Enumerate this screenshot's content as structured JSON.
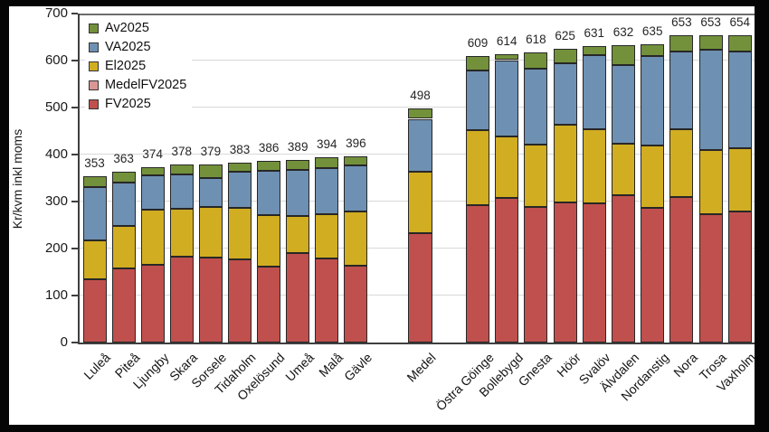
{
  "chart_data": {
    "type": "bar",
    "stacked": true,
    "title": "",
    "xlabel": "",
    "ylabel": "Kr/kvm inkl moms",
    "ylim": [
      0,
      700
    ],
    "ytick_step": 100,
    "grid": "horizontal",
    "legend_position": "upper-left-inside",
    "series_stack_order_bottom_to_top": [
      "FV2025",
      "El2025",
      "VA2025",
      "Av2025"
    ],
    "legend": [
      {
        "label": "Av2025",
        "color": "#73913b"
      },
      {
        "label": "VA2025",
        "color": "#6e90b2"
      },
      {
        "label": "El2025",
        "color": "#d1ad21"
      },
      {
        "label": "MedelFV2025",
        "color": "#d99694"
      },
      {
        "label": "FV2025",
        "color": "#c0504d"
      }
    ],
    "bars": [
      {
        "category": "Luleå",
        "group": "left",
        "total": 353,
        "FV2025": 134,
        "El2025": 84,
        "VA2025": 113,
        "Av2025": 22
      },
      {
        "category": "Piteå",
        "group": "left",
        "total": 363,
        "FV2025": 157,
        "El2025": 92,
        "VA2025": 92,
        "Av2025": 22
      },
      {
        "category": "Ljungby",
        "group": "left",
        "total": 374,
        "FV2025": 165,
        "El2025": 117,
        "VA2025": 73,
        "Av2025": 19
      },
      {
        "category": "Skara",
        "group": "left",
        "total": 378,
        "FV2025": 182,
        "El2025": 103,
        "VA2025": 73,
        "Av2025": 20
      },
      {
        "category": "Sorsele",
        "group": "left",
        "total": 379,
        "FV2025": 181,
        "El2025": 108,
        "VA2025": 61,
        "Av2025": 29
      },
      {
        "category": "Tidaholm",
        "group": "left",
        "total": 383,
        "FV2025": 177,
        "El2025": 110,
        "VA2025": 76,
        "Av2025": 20
      },
      {
        "category": "Oxelösund",
        "group": "left",
        "total": 386,
        "FV2025": 161,
        "El2025": 111,
        "VA2025": 93,
        "Av2025": 21
      },
      {
        "category": "Umeå",
        "group": "left",
        "total": 389,
        "FV2025": 190,
        "El2025": 80,
        "VA2025": 98,
        "Av2025": 21
      },
      {
        "category": "Malå",
        "group": "left",
        "total": 394,
        "FV2025": 179,
        "El2025": 94,
        "VA2025": 98,
        "Av2025": 23
      },
      {
        "category": "Gävle",
        "group": "left",
        "total": 396,
        "FV2025": 163,
        "El2025": 115,
        "VA2025": 99,
        "Av2025": 19
      },
      {
        "category": "Medel",
        "group": "medel",
        "total": 498,
        "FV2025": 233,
        "El2025": 131,
        "VA2025": 112,
        "Av2025": 22
      },
      {
        "category": "Östra Göinge",
        "group": "right",
        "total": 609,
        "FV2025": 293,
        "El2025": 158,
        "VA2025": 128,
        "Av2025": 30
      },
      {
        "category": "Bollebygd",
        "group": "right",
        "total": 614,
        "FV2025": 307,
        "El2025": 131,
        "VA2025": 163,
        "Av2025": 13
      },
      {
        "category": "Gnesta",
        "group": "right",
        "total": 618,
        "FV2025": 289,
        "El2025": 133,
        "VA2025": 161,
        "Av2025": 35
      },
      {
        "category": "Höör",
        "group": "right",
        "total": 625,
        "FV2025": 299,
        "El2025": 164,
        "VA2025": 132,
        "Av2025": 30
      },
      {
        "category": "Svalöv",
        "group": "right",
        "total": 631,
        "FV2025": 296,
        "El2025": 157,
        "VA2025": 159,
        "Av2025": 19
      },
      {
        "category": "Älvdalen",
        "group": "right",
        "total": 632,
        "FV2025": 313,
        "El2025": 111,
        "VA2025": 166,
        "Av2025": 42
      },
      {
        "category": "Nordanstig",
        "group": "right",
        "total": 635,
        "FV2025": 287,
        "El2025": 132,
        "VA2025": 191,
        "Av2025": 25
      },
      {
        "category": "Nora",
        "group": "right",
        "total": 653,
        "FV2025": 310,
        "El2025": 144,
        "VA2025": 166,
        "Av2025": 33
      },
      {
        "category": "Trosa",
        "group": "right",
        "total": 653,
        "FV2025": 273,
        "El2025": 137,
        "VA2025": 213,
        "Av2025": 30
      },
      {
        "category": "Vaxholm",
        "group": "right",
        "total": 654,
        "FV2025": 278,
        "El2025": 135,
        "VA2025": 207,
        "Av2025": 34
      }
    ]
  }
}
